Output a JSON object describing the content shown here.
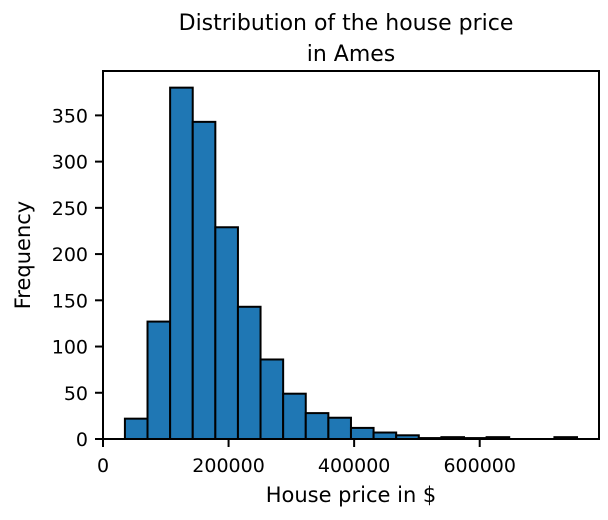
{
  "chart_data": {
    "type": "bar",
    "title_lines": [
      "Distribution of the house price",
      "in Ames"
    ],
    "xlabel": "House price in $",
    "ylabel": "Frequency",
    "xlim": [
      0,
      790000
    ],
    "ylim": [
      0,
      398
    ],
    "x_ticks": [
      0,
      200000,
      400000,
      600000
    ],
    "x_tick_labels": [
      "0",
      "200000",
      "400000",
      "600000"
    ],
    "y_ticks": [
      0,
      50,
      100,
      150,
      200,
      250,
      300,
      350
    ],
    "y_tick_labels": [
      "0",
      "50",
      "100",
      "150",
      "200",
      "250",
      "300",
      "350"
    ],
    "bin_start": 34900,
    "bin_width": 36005,
    "values": [
      22,
      127,
      380,
      343,
      229,
      143,
      86,
      49,
      28,
      23,
      12,
      7,
      4,
      1,
      2,
      1,
      2,
      0,
      0,
      2
    ],
    "bar_color": "#1f77b4",
    "edge_color": "#000000",
    "grid": false
  }
}
